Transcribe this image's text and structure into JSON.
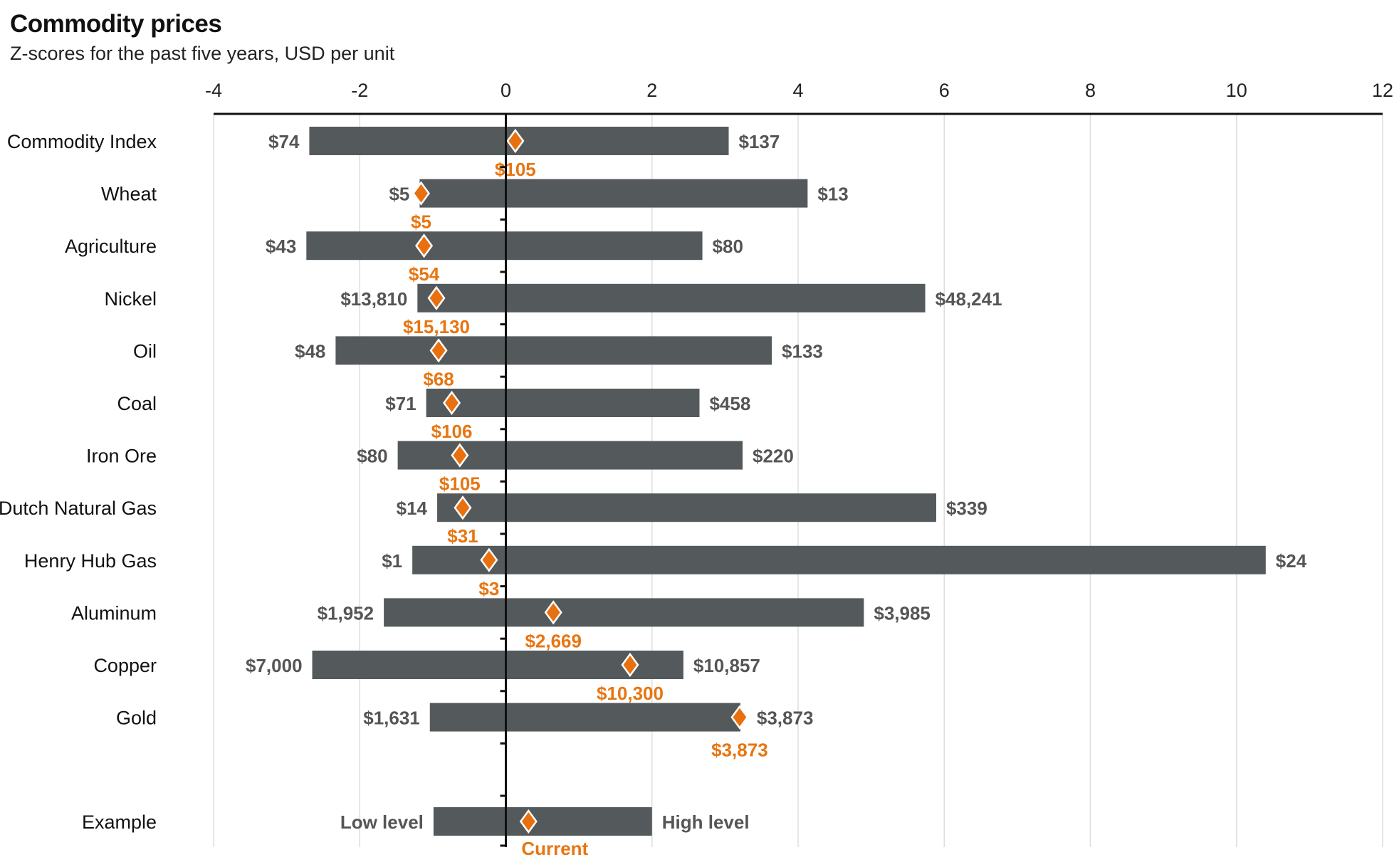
{
  "chart_data": {
    "type": "bar",
    "subtype": "floating-range-with-marker",
    "title": "Commodity prices",
    "subtitle": "Z-scores for the past five years, USD per unit",
    "xlim": [
      -4,
      12
    ],
    "xticks": [
      -4,
      -2,
      0,
      2,
      4,
      6,
      8,
      10,
      12
    ],
    "grid": true,
    "colors": {
      "bar": "#54595c",
      "marker": "#e8700f",
      "current_label": "#e87511",
      "value_label": "#555555",
      "grid": "#dddddd",
      "axis": "#111111"
    },
    "series": [
      {
        "name": "Commodity Index",
        "low_z": -2.69,
        "high_z": 3.05,
        "current_z": 0.13,
        "low_label": "$74",
        "high_label": "$137",
        "current_label": "$105"
      },
      {
        "name": "Wheat",
        "low_z": -1.18,
        "high_z": 4.13,
        "current_z": -1.16,
        "low_label": "$5",
        "high_label": "$13",
        "current_label": "$5"
      },
      {
        "name": "Agriculture",
        "low_z": -2.73,
        "high_z": 2.69,
        "current_z": -1.12,
        "low_label": "$43",
        "high_label": "$80",
        "current_label": "$54"
      },
      {
        "name": "Nickel",
        "low_z": -1.21,
        "high_z": 5.74,
        "current_z": -0.95,
        "low_label": "$13,810",
        "high_label": "$48,241",
        "current_label": "$15,130"
      },
      {
        "name": "Oil",
        "low_z": -2.33,
        "high_z": 3.64,
        "current_z": -0.92,
        "low_label": "$48",
        "high_label": "$133",
        "current_label": "$68"
      },
      {
        "name": "Coal",
        "low_z": -1.09,
        "high_z": 2.65,
        "current_z": -0.74,
        "low_label": "$71",
        "high_label": "$458",
        "current_label": "$106"
      },
      {
        "name": "Iron Ore",
        "low_z": -1.48,
        "high_z": 3.24,
        "current_z": -0.63,
        "low_label": "$80",
        "high_label": "$220",
        "current_label": "$105"
      },
      {
        "name": "Dutch Natural Gas",
        "low_z": -0.94,
        "high_z": 5.89,
        "current_z": -0.59,
        "low_label": "$14",
        "high_label": "$339",
        "current_label": "$31"
      },
      {
        "name": "Henry Hub Gas",
        "low_z": -1.28,
        "high_z": 10.4,
        "current_z": -0.23,
        "low_label": "$1",
        "high_label": "$24",
        "current_label": "$3"
      },
      {
        "name": "Aluminum",
        "low_z": -1.67,
        "high_z": 4.9,
        "current_z": 0.65,
        "low_label": "$1,952",
        "high_label": "$3,985",
        "current_label": "$2,669"
      },
      {
        "name": "Copper",
        "low_z": -2.65,
        "high_z": 2.43,
        "current_z": 1.7,
        "low_label": "$7,000",
        "high_label": "$10,857",
        "current_label": "$10,300"
      },
      {
        "name": "Gold",
        "low_z": -1.04,
        "high_z": 3.21,
        "current_z": 3.2,
        "low_label": "$1,631",
        "high_label": "$3,873",
        "current_label": "$3,873"
      }
    ],
    "example": {
      "name": "Example",
      "low_z": -0.99,
      "high_z": 2.0,
      "current_z": 0.31,
      "low_label": "Low level",
      "high_label": "High level",
      "current_label": "Current"
    }
  }
}
